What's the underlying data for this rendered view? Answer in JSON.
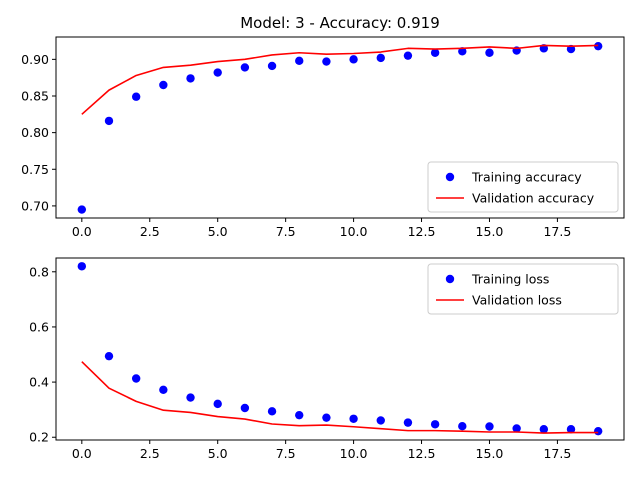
{
  "chart_data": [
    {
      "type": "line",
      "title": "Model: 3 - Accuracy: 0.919",
      "xlabel": "",
      "ylabel": "",
      "xlim": [
        -0.95,
        19.95
      ],
      "ylim": [
        0.6835,
        0.9305
      ],
      "xticks": [
        "0.0",
        "2.5",
        "5.0",
        "7.5",
        "10.0",
        "12.5",
        "15.0",
        "17.5"
      ],
      "yticks": [
        "0.70",
        "0.75",
        "0.80",
        "0.85",
        "0.90"
      ],
      "legend": "lower-right",
      "grid": false,
      "series": [
        {
          "name": "Training accuracy",
          "style": "markers",
          "color": "#0000ff",
          "x": [
            0,
            1,
            2,
            3,
            4,
            5,
            6,
            7,
            8,
            9,
            10,
            11,
            12,
            13,
            14,
            15,
            16,
            17,
            18,
            19
          ],
          "values": [
            0.695,
            0.816,
            0.849,
            0.865,
            0.874,
            0.882,
            0.889,
            0.891,
            0.898,
            0.897,
            0.9,
            0.902,
            0.905,
            0.909,
            0.911,
            0.909,
            0.912,
            0.915,
            0.914,
            0.918
          ]
        },
        {
          "name": "Validation accuracy",
          "style": "line",
          "color": "#ff0000",
          "x": [
            0,
            1,
            2,
            3,
            4,
            5,
            6,
            7,
            8,
            9,
            10,
            11,
            12,
            13,
            14,
            15,
            16,
            17,
            18,
            19
          ],
          "values": [
            0.825,
            0.858,
            0.878,
            0.889,
            0.892,
            0.897,
            0.9,
            0.906,
            0.909,
            0.907,
            0.908,
            0.91,
            0.915,
            0.914,
            0.915,
            0.917,
            0.915,
            0.919,
            0.918,
            0.919
          ]
        }
      ]
    },
    {
      "type": "line",
      "title": "",
      "xlabel": "",
      "ylabel": "",
      "xlim": [
        -0.95,
        19.95
      ],
      "ylim": [
        0.19,
        0.85
      ],
      "xticks": [
        "0.0",
        "2.5",
        "5.0",
        "7.5",
        "10.0",
        "12.5",
        "15.0",
        "17.5"
      ],
      "yticks": [
        "0.2",
        "0.4",
        "0.6",
        "0.8"
      ],
      "legend": "upper-right",
      "grid": false,
      "series": [
        {
          "name": "Training loss",
          "style": "markers",
          "color": "#0000ff",
          "x": [
            0,
            1,
            2,
            3,
            4,
            5,
            6,
            7,
            8,
            9,
            10,
            11,
            12,
            13,
            14,
            15,
            16,
            17,
            18,
            19
          ],
          "values": [
            0.82,
            0.494,
            0.413,
            0.372,
            0.344,
            0.321,
            0.306,
            0.294,
            0.28,
            0.271,
            0.267,
            0.261,
            0.253,
            0.247,
            0.24,
            0.239,
            0.232,
            0.229,
            0.229,
            0.222
          ]
        },
        {
          "name": "Validation loss",
          "style": "line",
          "color": "#ff0000",
          "x": [
            0,
            1,
            2,
            3,
            4,
            5,
            6,
            7,
            8,
            9,
            10,
            11,
            12,
            13,
            14,
            15,
            16,
            17,
            18,
            19
          ],
          "values": [
            0.474,
            0.378,
            0.33,
            0.298,
            0.29,
            0.275,
            0.266,
            0.248,
            0.242,
            0.244,
            0.238,
            0.231,
            0.224,
            0.224,
            0.222,
            0.219,
            0.219,
            0.215,
            0.217,
            0.217
          ]
        }
      ]
    }
  ]
}
